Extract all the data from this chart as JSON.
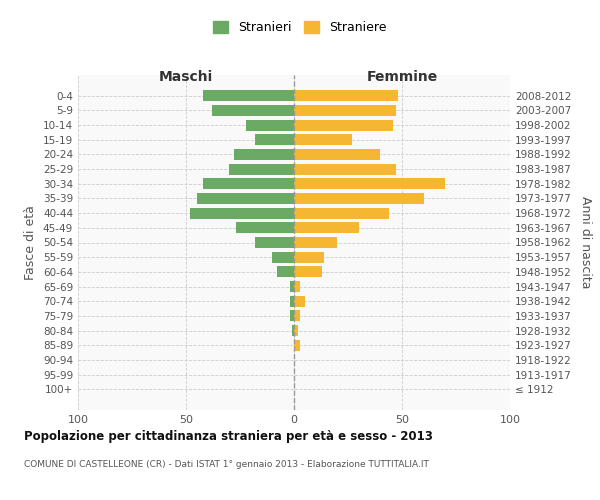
{
  "age_groups": [
    "100+",
    "95-99",
    "90-94",
    "85-89",
    "80-84",
    "75-79",
    "70-74",
    "65-69",
    "60-64",
    "55-59",
    "50-54",
    "45-49",
    "40-44",
    "35-39",
    "30-34",
    "25-29",
    "20-24",
    "15-19",
    "10-14",
    "5-9",
    "0-4"
  ],
  "birth_years": [
    "≤ 1912",
    "1913-1917",
    "1918-1922",
    "1923-1927",
    "1928-1932",
    "1933-1937",
    "1938-1942",
    "1943-1947",
    "1948-1952",
    "1953-1957",
    "1958-1962",
    "1963-1967",
    "1968-1972",
    "1973-1977",
    "1978-1982",
    "1983-1987",
    "1988-1992",
    "1993-1997",
    "1998-2002",
    "2003-2007",
    "2008-2012"
  ],
  "maschi": [
    0,
    0,
    0,
    0,
    1,
    2,
    2,
    2,
    8,
    10,
    18,
    27,
    48,
    45,
    42,
    30,
    28,
    18,
    22,
    38,
    42
  ],
  "femmine": [
    0,
    0,
    0,
    3,
    2,
    3,
    5,
    3,
    13,
    14,
    20,
    30,
    44,
    60,
    70,
    47,
    40,
    27,
    46,
    47,
    48
  ],
  "maschi_color": "#6aaa64",
  "femmine_color": "#f5b731",
  "background_color": "#f9f9f9",
  "grid_color": "#cccccc",
  "title": "Popolazione per cittadinanza straniera per età e sesso - 2013",
  "subtitle": "COMUNE DI CASTELLEONE (CR) - Dati ISTAT 1° gennaio 2013 - Elaborazione TUTTITALIA.IT",
  "header_left": "Maschi",
  "header_right": "Femmine",
  "ylabel_left": "Fasce di età",
  "ylabel_right": "Anni di nascita",
  "legend_stranieri": "Stranieri",
  "legend_straniere": "Straniere",
  "xlim": 100,
  "bar_height": 0.75,
  "xtick_positions": [
    -100,
    -50,
    0,
    50,
    100
  ],
  "xtick_labels": [
    "100",
    "50",
    "0",
    "50",
    "100"
  ]
}
